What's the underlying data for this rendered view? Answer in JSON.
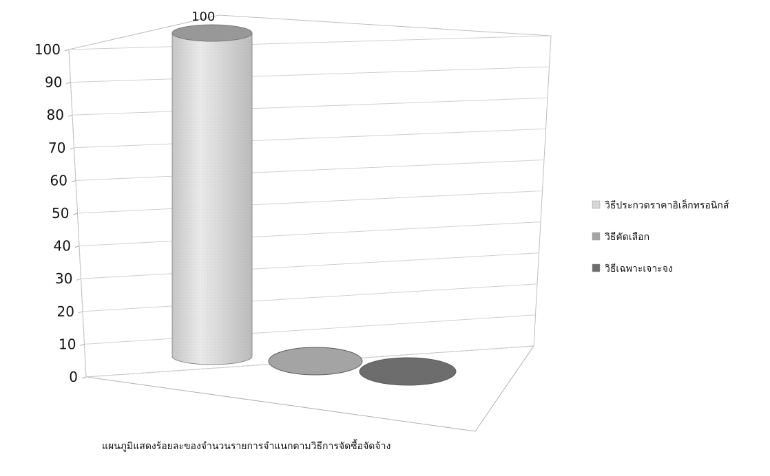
{
  "chart_data": {
    "type": "bar",
    "title": "",
    "caption": "แผนภูมิแสดงร้อยละของจำนวนรายการจำแนกตามวิธีการจัดซื้อจัดจ้าง",
    "ylim": [
      0,
      100
    ],
    "yticks": [
      0,
      10,
      20,
      30,
      40,
      50,
      60,
      70,
      80,
      90,
      100
    ],
    "grid": true,
    "legend_position": "right",
    "series": [
      {
        "name": "วิธีประกวดราคาอิเล็กทรอนิกส์",
        "value": 100,
        "data_label": "100",
        "color": "#d9d9d9"
      },
      {
        "name": "วิธีคัดเลือก",
        "value": 0,
        "data_label": "",
        "color": "#a6a6a6"
      },
      {
        "name": "วิธีเฉพาะเจาะจง",
        "value": 0,
        "data_label": "",
        "color": "#6e6e6e"
      }
    ]
  }
}
